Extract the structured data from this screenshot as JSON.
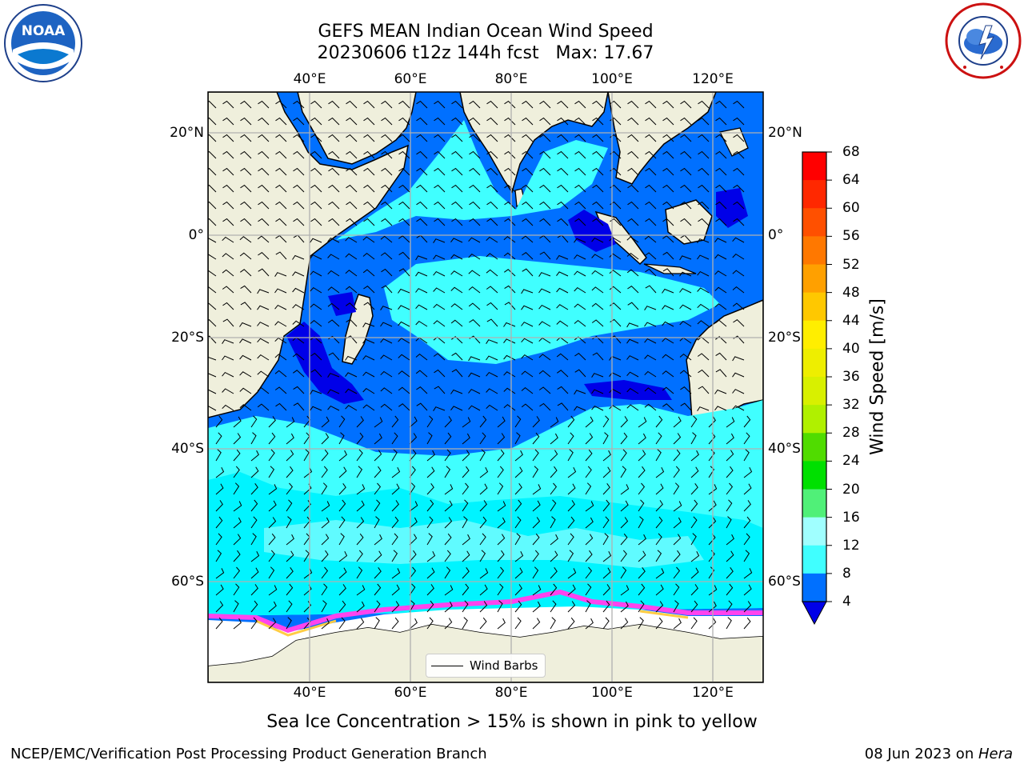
{
  "header": {
    "title_line1": "GEFS MEAN Indian Ocean Wind Speed",
    "title_line2": "20230606 t12z 144h fcst   Max: 17.67"
  },
  "logos": {
    "noaa": {
      "icon": "noaa-logo",
      "text": "NOAA"
    },
    "nws": {
      "icon": "nws-logo"
    }
  },
  "map": {
    "lon_ticks": [
      "40°E",
      "60°E",
      "80°E",
      "100°E",
      "120°E"
    ],
    "lat_ticks": [
      "20°N",
      "0°",
      "20°S",
      "40°S",
      "60°S"
    ],
    "lon_range": [
      20,
      130
    ],
    "lat_range": [
      -72,
      28
    ],
    "legend_label": "Wind Barbs",
    "colors": {
      "land": "#efefdc",
      "grid": "#b0b0b0",
      "ice": "#ff44ee"
    }
  },
  "colorbar": {
    "label": "Wind Speed [m/s]",
    "ticks": [
      "68",
      "64",
      "60",
      "56",
      "52",
      "48",
      "44",
      "40",
      "36",
      "32",
      "28",
      "24",
      "20",
      "16",
      "12",
      "8",
      "4"
    ],
    "colors": [
      "#ff0000",
      "#ff2800",
      "#ff5000",
      "#ff7800",
      "#ffa000",
      "#ffc800",
      "#ffee00",
      "#eeee00",
      "#d8f000",
      "#b0f000",
      "#50dc00",
      "#00e000",
      "#50f078",
      "#a0ffff",
      "#40ffff",
      "#00f4ff",
      "#0070ff"
    ],
    "under_color": "#0000e8"
  },
  "caption": "Sea Ice Concentration > 15% is shown in pink to yellow",
  "footer": {
    "left": "NCEP/EMC/Verification Post Processing Product Generation Branch",
    "right_prefix": "08 Jun 2023 on ",
    "right_machine": "Hera"
  }
}
